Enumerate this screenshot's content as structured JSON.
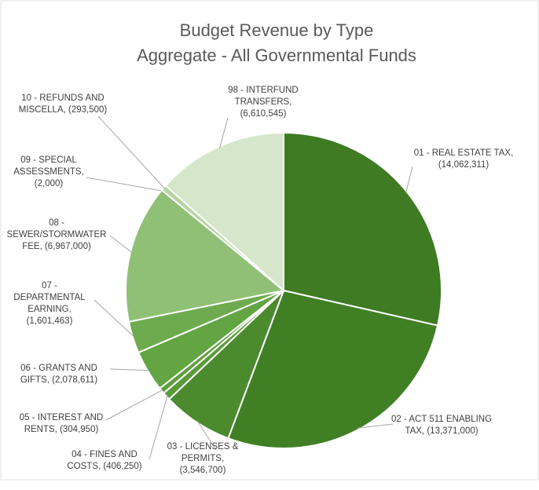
{
  "chart_data": {
    "type": "pie",
    "title": "Budget Revenue by Type",
    "subtitle": "Aggregate - All Governmental Funds",
    "categories": [
      "01 - REAL ESTATE TAX,",
      "02 - ACT 511 ENABLING TAX,",
      "03 - LICENSES & PERMITS,",
      "04 - FINES AND COSTS,",
      "05 - INTEREST AND RENTS,",
      "06 - GRANTS AND GIFTS,",
      "07 - DEPARTMENTAL EARNING,",
      "08 - SEWER/STORMWATER FEE,",
      "09 - SPECIAL ASSESSMENTS,",
      "10 - REFUNDS AND MISCELLA,",
      "98 - INTERFUND TRANSFERS,"
    ],
    "values": [
      14062311,
      13371000,
      3546700,
      406250,
      304950,
      2078611,
      1601463,
      6967000,
      2000,
      293500,
      6610545
    ],
    "value_labels": [
      "(14,062,311)",
      "(13,371,000)",
      "(3,546,700)",
      "(406,250)",
      "(304,950)",
      "(2,078,611)",
      "(1,601,463)",
      "(6,967,000)",
      "(2,000)",
      "(293,500)",
      "(6,610,545)"
    ],
    "colors": [
      "#3e7b23",
      "#417f25",
      "#4c8b2d",
      "#5a9a3a",
      "#5f9f3f",
      "#63a443",
      "#6eab4e",
      "#90c075",
      "#a7cd90",
      "#b5d4a1",
      "#d6e6ca"
    ]
  }
}
